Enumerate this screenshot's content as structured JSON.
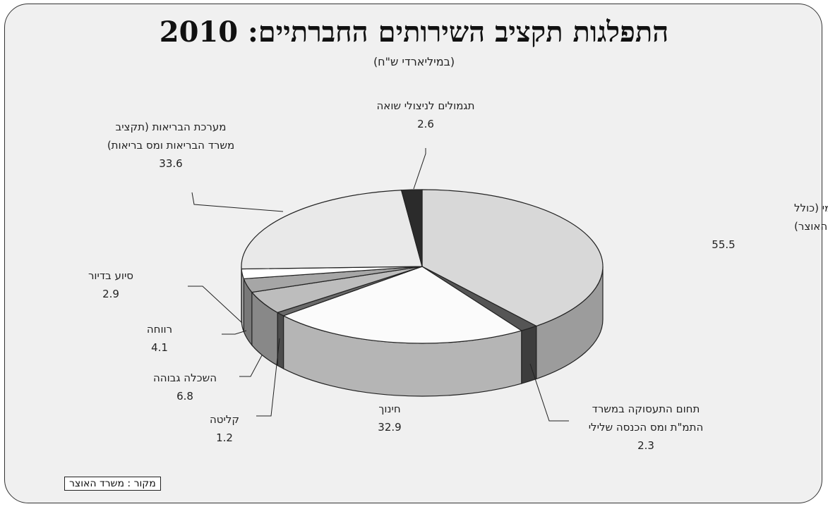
{
  "title": "התפלגות תקציב השירותים החברתיים: 2010",
  "subtitle": "(במיליארדי ש\"ח)",
  "source": "מקור : משרד האוצר",
  "chart_data": {
    "type": "pie",
    "title": "התפלגות תקציב השירותים החברתיים: 2010",
    "subtitle": "(במיליארדי ש\"ח)",
    "three_d": true,
    "slices": [
      {
        "key": "bituach",
        "label_lines": [
          "גימלאות הביטוח הלאומי (כולל",
          "גימלאות במימון האוצר)"
        ],
        "value_text": "55.5",
        "value": 55.5,
        "color": "#d8d8d8"
      },
      {
        "key": "taasuka",
        "label_lines": [
          "תחום התעסוקה במשרד",
          "התמ\"ת ומס הכנסה שלילי"
        ],
        "value_text": "2.3",
        "value": 2.3,
        "color": "#555555"
      },
      {
        "key": "chinuch",
        "label_lines": [
          "חינוך"
        ],
        "value_text": "32.9",
        "value": 32.9,
        "color": "#fbfbfb"
      },
      {
        "key": "klita",
        "label_lines": [
          "קליטה"
        ],
        "value_text": "1.2",
        "value": 1.2,
        "color": "#6a6a6a"
      },
      {
        "key": "haskala",
        "label_lines": [
          "השכלה גבוהה"
        ],
        "value_text": "6.8",
        "value": 6.8,
        "color": "#bdbdbd"
      },
      {
        "key": "revacha",
        "label_lines": [
          "רווחה"
        ],
        "value_text": "4.1",
        "value": 4.1,
        "color": "#a6a6a6"
      },
      {
        "key": "diyur",
        "label_lines": [
          "סיוע בדיור"
        ],
        "value_text": "2.9",
        "value": 2.9,
        "color": "#ffffff"
      },
      {
        "key": "briut",
        "label_lines": [
          "מערכת הבריאות (תקציב",
          "משרד הבריאות ומס בריאות)"
        ],
        "value_text": "33.6",
        "value": 33.6,
        "color": "#e9e9e9"
      },
      {
        "key": "shoa",
        "label_lines": [
          "תגמולים לניצולי שואה"
        ],
        "value_text": "2.6",
        "value": 2.6,
        "color": "#2b2b2b"
      }
    ]
  }
}
